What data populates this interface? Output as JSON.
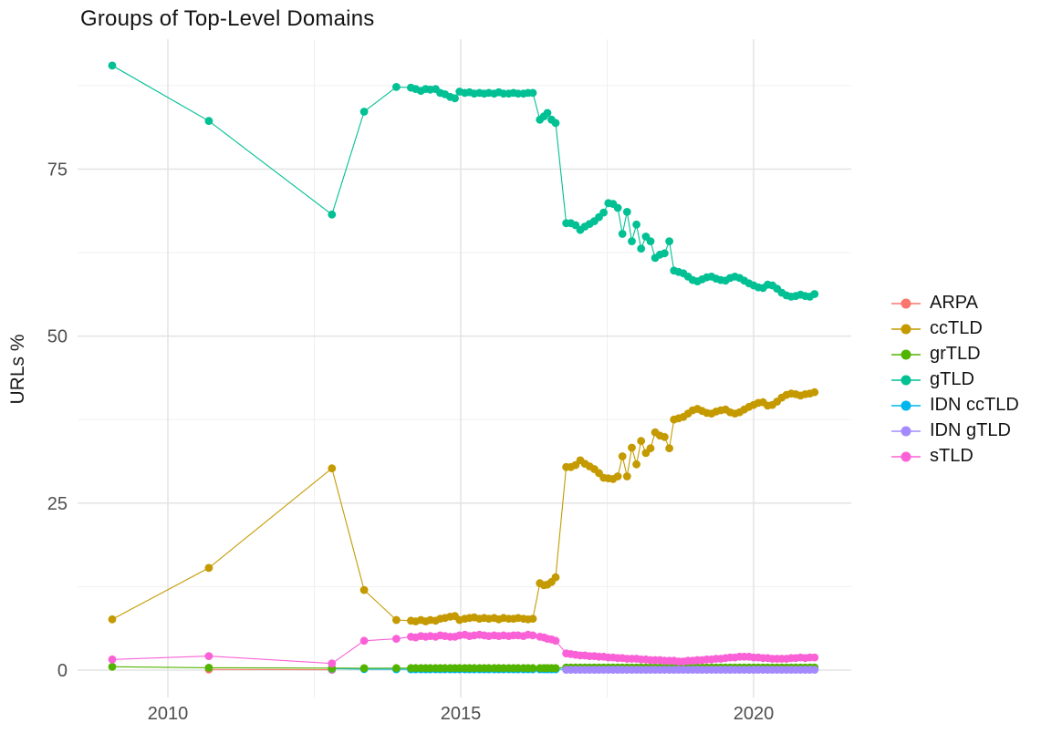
{
  "chart": {
    "title": "Groups of Top-Level Domains",
    "ylabel": "URLs %"
  },
  "legend": {
    "items": [
      {
        "label": "ARPA",
        "color": "#F8766D"
      },
      {
        "label": "ccTLD",
        "color": "#C49A00"
      },
      {
        "label": "grTLD",
        "color": "#53B400"
      },
      {
        "label": "gTLD",
        "color": "#00C094"
      },
      {
        "label": "IDN ccTLD",
        "color": "#00B6EB"
      },
      {
        "label": "IDN gTLD",
        "color": "#A58AFF"
      },
      {
        "label": "sTLD",
        "color": "#FB61D7"
      }
    ]
  },
  "chart_data": {
    "type": "line",
    "title": "Groups of Top-Level Domains",
    "xlabel": "",
    "ylabel": "URLs %",
    "x_ticks": [
      2010,
      2015,
      2020
    ],
    "x_minor_gridlines": [
      2012.5,
      2017.5
    ],
    "y_ticks": [
      0,
      25,
      50,
      75
    ],
    "y_minor_gridlines": [
      12.5,
      37.5,
      62.5,
      87.5
    ],
    "xlim": [
      2008.45,
      2021.67
    ],
    "ylim": [
      -4.1,
      94.5
    ],
    "grid": true,
    "legend_position": "right",
    "marker": "point",
    "grids": {
      "early": [
        2009.05,
        2010.7,
        2012.8,
        2013.35,
        2013.9
      ],
      "arpa": [
        2010.7,
        2012.8
      ],
      "early_idn": [
        2012.8,
        2013.35,
        2013.9
      ],
      "mid": [
        2014.15,
        2014.23,
        2014.32,
        2014.4,
        2014.48,
        2014.57,
        2014.65,
        2014.73,
        2014.82,
        2014.9,
        2014.98,
        2015.07,
        2015.15,
        2015.23,
        2015.32,
        2015.4,
        2015.48,
        2015.57,
        2015.65,
        2015.73,
        2015.82,
        2015.9,
        2015.98,
        2016.07,
        2016.15,
        2016.23
      ],
      "break": [
        2016.35,
        2016.42,
        2016.48,
        2016.55,
        2016.62
      ],
      "late": [
        2016.8,
        2016.88,
        2016.96,
        2017.04,
        2017.12,
        2017.2,
        2017.28,
        2017.36,
        2017.44,
        2017.52,
        2017.6,
        2017.68,
        2017.76,
        2017.84,
        2017.92,
        2018.0,
        2018.08,
        2018.16,
        2018.24,
        2018.32,
        2018.4,
        2018.48,
        2018.56,
        2018.64,
        2018.72,
        2018.8,
        2018.88,
        2018.96,
        2019.04,
        2019.12,
        2019.2,
        2019.28,
        2019.36,
        2019.44,
        2019.52,
        2019.6,
        2019.68,
        2019.76,
        2019.84,
        2019.92,
        2020.0,
        2020.08,
        2020.16,
        2020.24,
        2020.32,
        2020.4,
        2020.48,
        2020.56,
        2020.64,
        2020.72,
        2020.8,
        2020.88,
        2020.96,
        2021.04
      ]
    },
    "series": [
      {
        "name": "ARPA",
        "color": "#F8766D",
        "segments": {
          "arpa": [
            0.1,
            0.06
          ]
        }
      },
      {
        "name": "ccTLD",
        "color": "#C49A00",
        "segments": {
          "early": [
            7.6,
            15.3,
            30.2,
            12.0,
            7.5
          ],
          "mid": [
            7.4,
            7.3,
            7.5,
            7.3,
            7.5,
            7.4,
            7.7,
            7.8,
            8.0,
            8.1,
            7.5,
            7.7,
            7.8,
            7.9,
            7.7,
            7.8,
            7.7,
            7.8,
            7.6,
            7.8,
            7.7,
            7.7,
            7.8,
            7.7,
            7.6,
            7.7
          ],
          "break": [
            13.0,
            12.7,
            12.8,
            13.2,
            13.9
          ],
          "late": [
            30.4,
            30.4,
            30.7,
            31.4,
            30.9,
            30.5,
            30.1,
            29.5,
            28.8,
            28.7,
            28.6,
            29.0,
            32.0,
            29.0,
            33.3,
            30.8,
            34.3,
            32.5,
            33.2,
            35.6,
            35.1,
            34.9,
            33.2,
            37.5,
            37.7,
            37.9,
            38.4,
            38.9,
            39.1,
            38.8,
            38.5,
            38.4,
            38.7,
            38.9,
            39.0,
            38.6,
            38.4,
            38.6,
            39.0,
            39.4,
            39.7,
            40.0,
            40.1,
            39.6,
            39.7,
            40.2,
            40.8,
            41.2,
            41.4,
            41.3,
            41.1,
            41.3,
            41.4,
            41.6
          ]
        }
      },
      {
        "name": "IDN ccTLD",
        "color": "#00B6EB",
        "segments": {
          "early_idn": [
            0.2,
            0.15,
            0.12
          ],
          "mid": 0.12,
          "break": 0.12,
          "late": 0.12
        }
      },
      {
        "name": "grTLD",
        "color": "#53B400",
        "segments": {
          "early": [
            0.5,
            0.35,
            0.3,
            0.28,
            0.3
          ],
          "mid": 0.3,
          "break": 0.3,
          "late": 0.4
        }
      },
      {
        "name": "IDN gTLD",
        "color": "#A58AFF",
        "segments": {
          "late": 0.06
        }
      },
      {
        "name": "gTLD",
        "color": "#00C094",
        "segments": {
          "early": [
            90.5,
            82.2,
            68.2,
            83.6,
            87.3
          ],
          "mid": [
            87.2,
            87.0,
            86.7,
            87.0,
            86.9,
            87.0,
            86.4,
            86.2,
            85.8,
            85.6,
            86.6,
            86.4,
            86.5,
            86.3,
            86.4,
            86.3,
            86.4,
            86.3,
            86.5,
            86.3,
            86.3,
            86.4,
            86.3,
            86.3,
            86.4,
            86.4
          ],
          "break": [
            82.4,
            82.9,
            83.4,
            82.4,
            81.9
          ],
          "late": [
            66.9,
            66.9,
            66.6,
            65.9,
            66.4,
            66.8,
            67.2,
            67.8,
            68.5,
            69.9,
            69.8,
            69.2,
            65.3,
            68.6,
            64.2,
            66.7,
            63.1,
            64.9,
            64.2,
            61.7,
            62.2,
            62.4,
            64.2,
            59.8,
            59.6,
            59.4,
            58.9,
            58.4,
            58.2,
            58.5,
            58.8,
            58.9,
            58.6,
            58.4,
            58.3,
            58.7,
            58.9,
            58.7,
            58.3,
            57.9,
            57.6,
            57.3,
            57.2,
            57.7,
            57.6,
            57.1,
            56.5,
            56.1,
            55.9,
            56.0,
            56.2,
            56.0,
            55.9,
            56.3
          ]
        }
      },
      {
        "name": "sTLD",
        "color": "#FB61D7",
        "segments": {
          "early": [
            1.6,
            2.1,
            1.0,
            4.4,
            4.7
          ],
          "mid": [
            5.0,
            4.9,
            5.1,
            5.0,
            5.1,
            5.0,
            5.2,
            5.1,
            5.0,
            5.0,
            5.2,
            5.3,
            5.1,
            5.2,
            5.3,
            5.2,
            5.1,
            5.2,
            5.1,
            5.2,
            5.1,
            5.2,
            5.2,
            5.1,
            5.3,
            5.2
          ],
          "break": [
            5.0,
            4.9,
            4.7,
            4.6,
            4.4
          ],
          "late": [
            2.5,
            2.4,
            2.3,
            2.2,
            2.2,
            2.1,
            2.1,
            2.0,
            2.0,
            1.9,
            1.9,
            1.8,
            1.8,
            1.7,
            1.7,
            1.7,
            1.6,
            1.6,
            1.5,
            1.5,
            1.5,
            1.4,
            1.4,
            1.4,
            1.3,
            1.3,
            1.4,
            1.4,
            1.5,
            1.5,
            1.6,
            1.6,
            1.7,
            1.7,
            1.8,
            1.9,
            1.9,
            2.0,
            2.0,
            2.0,
            1.9,
            1.9,
            1.8,
            1.8,
            1.7,
            1.7,
            1.7,
            1.7,
            1.8,
            1.8,
            1.9,
            1.8,
            1.9,
            1.9
          ]
        }
      }
    ]
  }
}
